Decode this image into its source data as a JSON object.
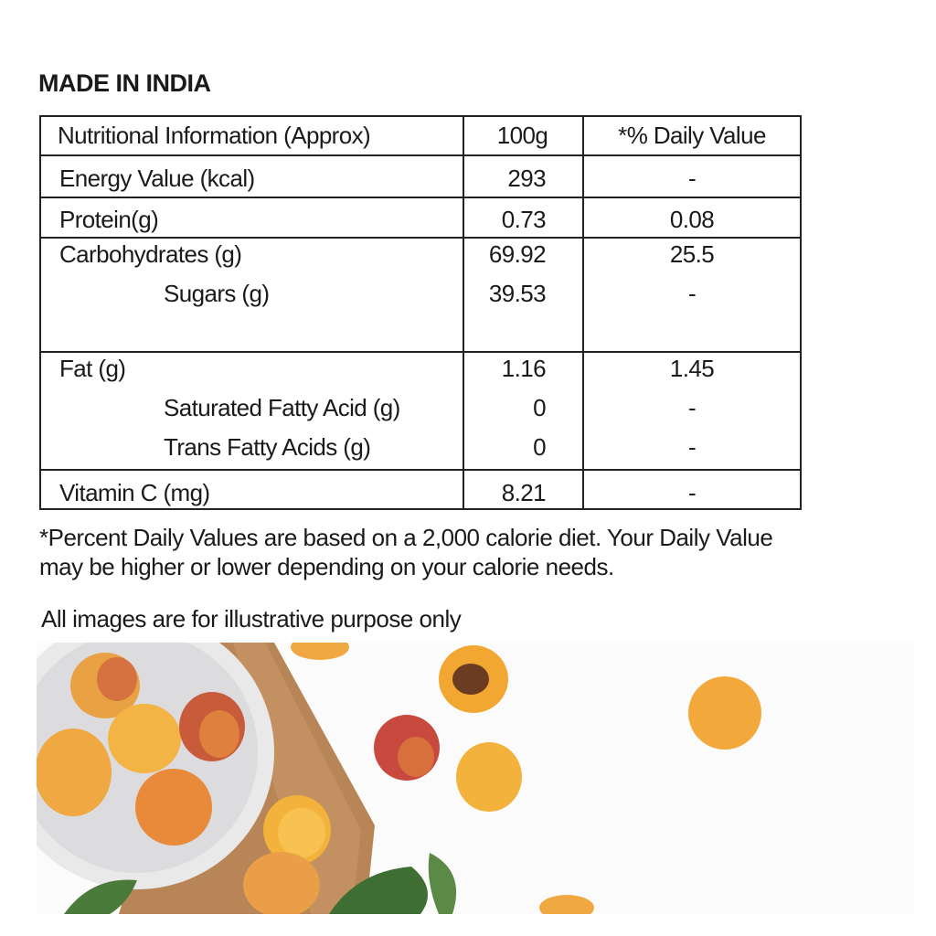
{
  "title": "MADE IN INDIA",
  "table": {
    "header": [
      "Nutritional Information (Approx)",
      "100g",
      "*% Daily Value"
    ],
    "groups": [
      {
        "rows": [
          [
            "Energy Value (kcal)",
            "293",
            "-"
          ]
        ]
      },
      {
        "rows": [
          [
            "Protein(g)",
            "0.73",
            "0.08"
          ]
        ]
      },
      {
        "rows": [
          [
            "Carbohydrates (g)",
            "69.92",
            "25.5"
          ],
          [
            "Sugars (g)",
            "39.53",
            "-"
          ]
        ]
      },
      {
        "rows": [
          [
            "Fat (g)",
            "1.16",
            "1.45"
          ],
          [
            "Saturated Fatty Acid (g)",
            "0",
            "-"
          ],
          [
            "Trans Fatty Acids (g)",
            "0",
            "-"
          ]
        ]
      },
      {
        "rows": [
          [
            "Vitamin C (mg)",
            "8.21",
            "-"
          ]
        ]
      }
    ]
  },
  "footnote": "*Percent Daily Values are based on a 2,000 calorie diet. Your Daily Value may be higher or lower depending on your calorie needs.",
  "disclaimer": "All images are for illustrative purpose only"
}
